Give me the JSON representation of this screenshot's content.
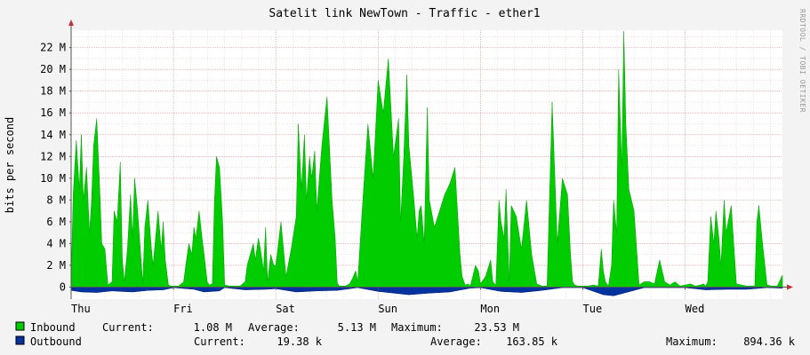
{
  "chart_data": {
    "type": "area",
    "title": "Satelit link NewTown - Traffic - ether1",
    "ylabel": "bits per second",
    "watermark": "RRDTOOL / TOBI OETIKER",
    "y_unit_max": 23.53,
    "ylim": [
      -1.1,
      23.6
    ],
    "y_ticks": [
      {
        "value": 0,
        "label": "0"
      },
      {
        "value": 2,
        "label": "2 M"
      },
      {
        "value": 4,
        "label": "4 M"
      },
      {
        "value": 6,
        "label": "6 M"
      },
      {
        "value": 8,
        "label": "8 M"
      },
      {
        "value": 10,
        "label": "10 M"
      },
      {
        "value": 12,
        "label": "12 M"
      },
      {
        "value": 14,
        "label": "14 M"
      },
      {
        "value": 16,
        "label": "16 M"
      },
      {
        "value": 18,
        "label": "18 M"
      },
      {
        "value": 20,
        "label": "20 M"
      },
      {
        "value": 22,
        "label": "22 M"
      }
    ],
    "x_range_days": [
      0,
      6.95
    ],
    "x_ticks": [
      {
        "day": 0,
        "label": "Thu"
      },
      {
        "day": 1,
        "label": "Fri"
      },
      {
        "day": 2,
        "label": "Sat"
      },
      {
        "day": 3,
        "label": "Sun"
      },
      {
        "day": 4,
        "label": "Mon"
      },
      {
        "day": 5,
        "label": "Tue"
      },
      {
        "day": 6,
        "label": "Wed"
      }
    ],
    "grid": true,
    "series": [
      {
        "name": "Inbound",
        "color": "#00cc00",
        "stats": {
          "current": "1.08 M",
          "average": "5.13 M",
          "maximum": "23.53 M"
        },
        "x": [
          0.0,
          0.02,
          0.05,
          0.08,
          0.1,
          0.12,
          0.15,
          0.18,
          0.2,
          0.22,
          0.25,
          0.28,
          0.3,
          0.33,
          0.36,
          0.4,
          0.42,
          0.45,
          0.48,
          0.5,
          0.52,
          0.55,
          0.58,
          0.6,
          0.62,
          0.65,
          0.7,
          0.72,
          0.75,
          0.78,
          0.8,
          0.82,
          0.85,
          0.88,
          0.9,
          0.92,
          0.95,
          0.98,
          1.0,
          1.05,
          1.1,
          1.12,
          1.15,
          1.18,
          1.2,
          1.22,
          1.25,
          1.28,
          1.3,
          1.33,
          1.35,
          1.38,
          1.4,
          1.42,
          1.45,
          1.48,
          1.5,
          1.55,
          1.6,
          1.65,
          1.7,
          1.72,
          1.75,
          1.78,
          1.8,
          1.83,
          1.85,
          1.88,
          1.9,
          1.92,
          1.95,
          1.98,
          2.0,
          2.05,
          2.1,
          2.15,
          2.2,
          2.22,
          2.25,
          2.28,
          2.3,
          2.33,
          2.35,
          2.38,
          2.4,
          2.45,
          2.5,
          2.55,
          2.58,
          2.6,
          2.62,
          2.65,
          2.68,
          2.7,
          2.72,
          2.75,
          2.78,
          2.8,
          2.85,
          2.9,
          2.95,
          3.0,
          3.05,
          3.1,
          3.15,
          3.2,
          3.22,
          3.25,
          3.28,
          3.3,
          3.33,
          3.35,
          3.38,
          3.4,
          3.42,
          3.45,
          3.48,
          3.5,
          3.55,
          3.6,
          3.65,
          3.7,
          3.75,
          3.8,
          3.82,
          3.85,
          3.88,
          3.9,
          3.92,
          3.95,
          3.98,
          4.0,
          4.05,
          4.1,
          4.12,
          4.15,
          4.18,
          4.2,
          4.23,
          4.25,
          4.28,
          4.3,
          4.35,
          4.4,
          4.45,
          4.5,
          4.55,
          4.6,
          4.65,
          4.7,
          4.75,
          4.8,
          4.85,
          4.88,
          4.9,
          4.92,
          4.95,
          5.0,
          5.05,
          5.1,
          5.15,
          5.18,
          5.2,
          5.22,
          5.25,
          5.28,
          5.3,
          5.33,
          5.35,
          5.38,
          5.4,
          5.42,
          5.45,
          5.5,
          5.55,
          5.6,
          5.65,
          5.7,
          5.75,
          5.8,
          5.85,
          5.9,
          5.95,
          6.0,
          6.05,
          6.1,
          6.15,
          6.18,
          6.2,
          6.22,
          6.25,
          6.28,
          6.3,
          6.33,
          6.35,
          6.38,
          6.4,
          6.45,
          6.5,
          6.55,
          6.6,
          6.65,
          6.68,
          6.7,
          6.72,
          6.75,
          6.8,
          6.85,
          6.9,
          6.95
        ],
        "values": [
          0.3,
          8.5,
          13.5,
          9.0,
          14.0,
          8.0,
          11.0,
          5.0,
          8.0,
          13.0,
          15.5,
          9.0,
          4.0,
          3.5,
          0.2,
          0.5,
          7.0,
          6.0,
          11.5,
          2.5,
          0.5,
          3.5,
          8.5,
          4.5,
          10.0,
          7.0,
          0.3,
          5.5,
          8.0,
          4.0,
          2.0,
          4.0,
          7.0,
          3.5,
          6.0,
          2.5,
          0.2,
          0.1,
          0.1,
          0.1,
          0.5,
          2.0,
          4.0,
          3.0,
          5.5,
          4.5,
          7.0,
          4.5,
          3.0,
          0.5,
          0.2,
          0.3,
          8.0,
          12.0,
          11.0,
          6.0,
          0.2,
          0.1,
          0.1,
          0.1,
          0.5,
          2.0,
          3.0,
          4.0,
          2.5,
          4.5,
          3.5,
          1.5,
          5.5,
          0.5,
          3.0,
          2.0,
          2.0,
          6.0,
          1.0,
          3.5,
          6.5,
          15.0,
          9.0,
          14.0,
          8.0,
          12.0,
          10.0,
          12.5,
          7.0,
          13.0,
          17.5,
          8.0,
          4.5,
          0.4,
          0.1,
          0.1,
          0.1,
          0.2,
          0.3,
          0.8,
          1.5,
          0.5,
          8.0,
          15.0,
          10.0,
          19.0,
          16.0,
          21.0,
          12.0,
          15.5,
          6.0,
          12.0,
          19.5,
          13.0,
          10.0,
          8.0,
          4.5,
          7.0,
          7.5,
          4.0,
          16.5,
          8.0,
          5.5,
          7.0,
          8.5,
          9.5,
          11.0,
          3.0,
          1.0,
          0.2,
          0.3,
          0.1,
          0.8,
          2.0,
          1.5,
          0.3,
          1.0,
          2.5,
          0.5,
          0.2,
          8.0,
          6.0,
          4.5,
          9.0,
          0.5,
          7.5,
          6.5,
          3.5,
          8.0,
          3.0,
          0.3,
          0.1,
          0.1,
          17.0,
          4.0,
          10.0,
          8.5,
          3.0,
          0.5,
          0.2,
          0.1,
          0.1,
          0.1,
          0.2,
          0.1,
          3.5,
          1.5,
          0.5,
          0.1,
          2.0,
          8.0,
          5.0,
          20.0,
          11.0,
          23.5,
          15.0,
          9.0,
          7.0,
          0.2,
          0.5,
          0.5,
          0.3,
          2.5,
          0.5,
          0.2,
          0.5,
          0.1,
          0.2,
          0.3,
          0.1,
          0.2,
          0.3,
          0.1,
          0.5,
          6.5,
          4.0,
          7.0,
          4.5,
          2.0,
          8.0,
          5.0,
          7.5,
          0.3,
          0.2,
          0.1,
          0.1,
          0.1,
          6.0,
          7.5,
          4.5,
          0.2,
          0.1,
          0.1,
          1.1
        ]
      },
      {
        "name": "Outbound",
        "color": "#0033a0",
        "stats": {
          "current": "19.38 k",
          "average": "163.85 k",
          "maximum": "894.36 k"
        },
        "x": [
          0.0,
          0.1,
          0.25,
          0.4,
          0.6,
          0.75,
          0.9,
          1.0,
          1.2,
          1.3,
          1.45,
          1.5,
          1.7,
          1.9,
          2.0,
          2.2,
          2.4,
          2.6,
          2.8,
          3.0,
          3.3,
          3.5,
          3.7,
          3.9,
          4.0,
          4.2,
          4.4,
          4.6,
          4.8,
          5.0,
          5.2,
          5.3,
          5.4,
          5.6,
          5.8,
          6.0,
          6.2,
          6.4,
          6.6,
          6.8,
          6.95
        ],
        "values": [
          0.3,
          0.45,
          0.5,
          0.35,
          0.45,
          0.3,
          0.25,
          0.05,
          0.2,
          0.45,
          0.35,
          0.05,
          0.25,
          0.2,
          0.15,
          0.45,
          0.35,
          0.3,
          0.05,
          0.4,
          0.7,
          0.55,
          0.45,
          0.1,
          0.05,
          0.4,
          0.5,
          0.3,
          0.05,
          0.05,
          0.7,
          0.8,
          0.55,
          0.05,
          0.05,
          0.05,
          0.25,
          0.2,
          0.2,
          0.05,
          0.1
        ]
      }
    ],
    "legend": {
      "current_label": "Current:",
      "average_label": "Average:",
      "maximum_label": "Maximum:"
    }
  }
}
